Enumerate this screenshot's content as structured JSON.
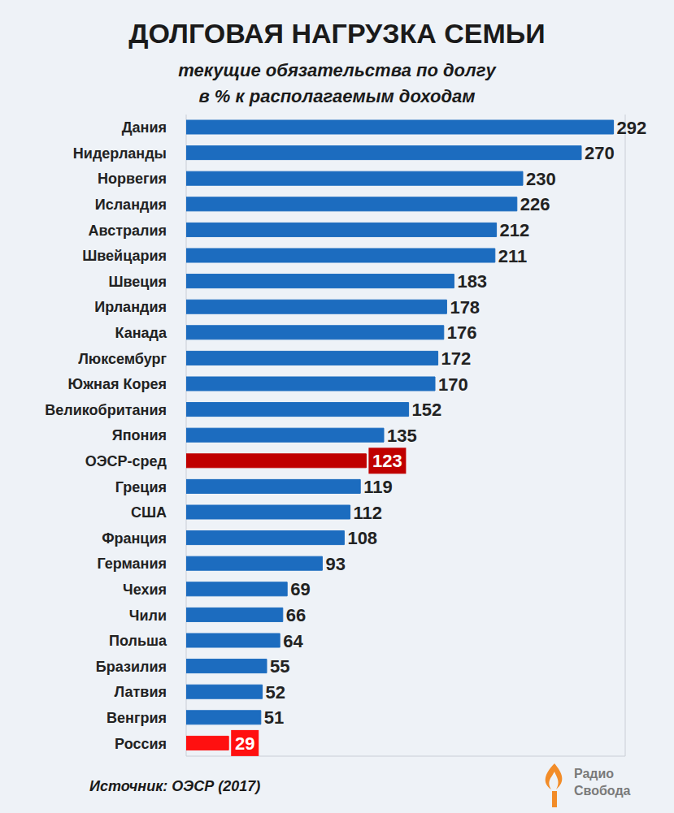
{
  "chart_data": {
    "type": "bar",
    "orientation": "horizontal",
    "title": "ДОЛГОВАЯ НАГРУЗКА СЕМЬИ",
    "subtitle": [
      "текущие обязательства по долгу",
      "в % к располагаемым доходам"
    ],
    "source": "Источник: ОЭСР (2017)",
    "logo": [
      "Радио",
      "Свобода"
    ],
    "categories": [
      "Дания",
      "Нидерланды",
      "Норвегия",
      "Исландия",
      "Австралия",
      "Швейцария",
      "Швеция",
      "Ирландия",
      "Канада",
      "Люксембург",
      "Южная Корея",
      "Великобритания",
      "Япония",
      "ОЭСР-сред",
      "Греция",
      "США",
      "Франция",
      "Германия",
      "Чехия",
      "Чили",
      "Польша",
      "Бразилия",
      "Латвия",
      "Венгрия",
      "Россия"
    ],
    "values": [
      292,
      270,
      230,
      226,
      212,
      211,
      183,
      178,
      176,
      172,
      170,
      152,
      135,
      123,
      119,
      112,
      108,
      93,
      69,
      66,
      64,
      55,
      52,
      51,
      29
    ],
    "color": "#1c6cbf",
    "colors": [
      "#1c6cbf",
      "#1c6cbf",
      "#1c6cbf",
      "#1c6cbf",
      "#1c6cbf",
      "#1c6cbf",
      "#1c6cbf",
      "#1c6cbf",
      "#1c6cbf",
      "#1c6cbf",
      "#1c6cbf",
      "#1c6cbf",
      "#1c6cbf",
      "#c00000",
      "#1c6cbf",
      "#1c6cbf",
      "#1c6cbf",
      "#1c6cbf",
      "#1c6cbf",
      "#1c6cbf",
      "#1c6cbf",
      "#1c6cbf",
      "#1c6cbf",
      "#1c6cbf",
      "#ff1010"
    ],
    "xlim": [
      0,
      300
    ],
    "xticks": [
      0,
      50,
      100,
      150,
      200,
      250,
      300
    ],
    "grid": true,
    "data_labels": true,
    "tick_labels": "y"
  }
}
